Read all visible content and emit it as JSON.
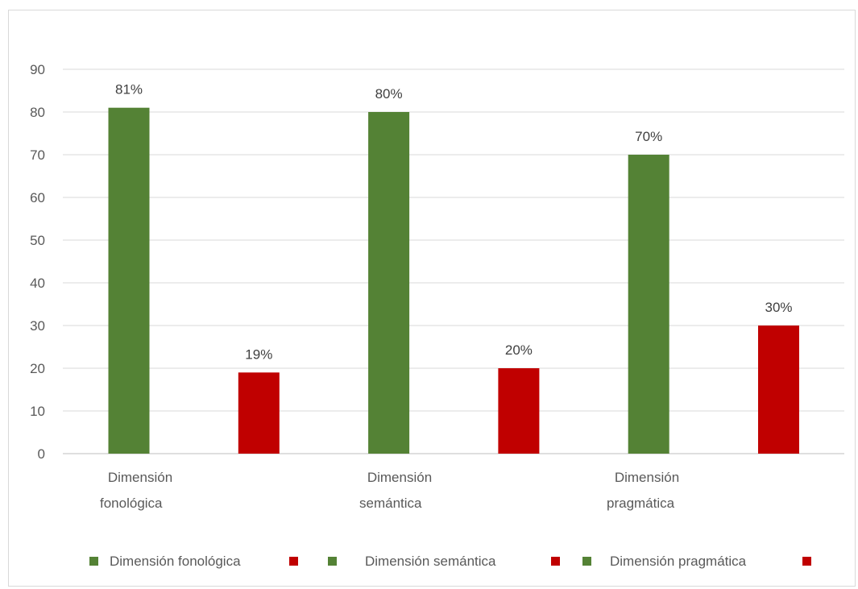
{
  "chart_data": {
    "type": "bar",
    "yticks": [
      0,
      10,
      20,
      30,
      40,
      50,
      60,
      70,
      80,
      90
    ],
    "ylim": [
      0,
      90
    ],
    "grid": true,
    "legend_placement": "bottom",
    "bars": [
      {
        "value": 81,
        "label": "81%",
        "color": "#548235"
      },
      {
        "value": 19,
        "label": "19%",
        "color": "#c00000"
      },
      {
        "value": 80,
        "label": "80%",
        "color": "#548235"
      },
      {
        "value": 20,
        "label": "20%",
        "color": "#c00000"
      },
      {
        "value": 70,
        "label": "70%",
        "color": "#548235"
      },
      {
        "value": 30,
        "label": "30%",
        "color": "#c00000"
      }
    ],
    "category_labels": [
      {
        "lines": [
          "Dimensión",
          "fonológica"
        ]
      },
      {
        "lines": [
          "Dimensión",
          "semántica"
        ]
      },
      {
        "lines": [
          "Dimensión",
          "pragmática"
        ]
      }
    ],
    "legend": [
      {
        "name": "Dimensión fonológica",
        "color": "#548235"
      },
      {
        "name": "",
        "color": "#c00000"
      },
      {
        "name": "Dimensión semántica",
        "color": "#548235"
      },
      {
        "name": "",
        "color": "#c00000"
      },
      {
        "name": "Dimensión pragmática",
        "color": "#548235"
      },
      {
        "name": "",
        "color": "#c00000"
      }
    ]
  }
}
